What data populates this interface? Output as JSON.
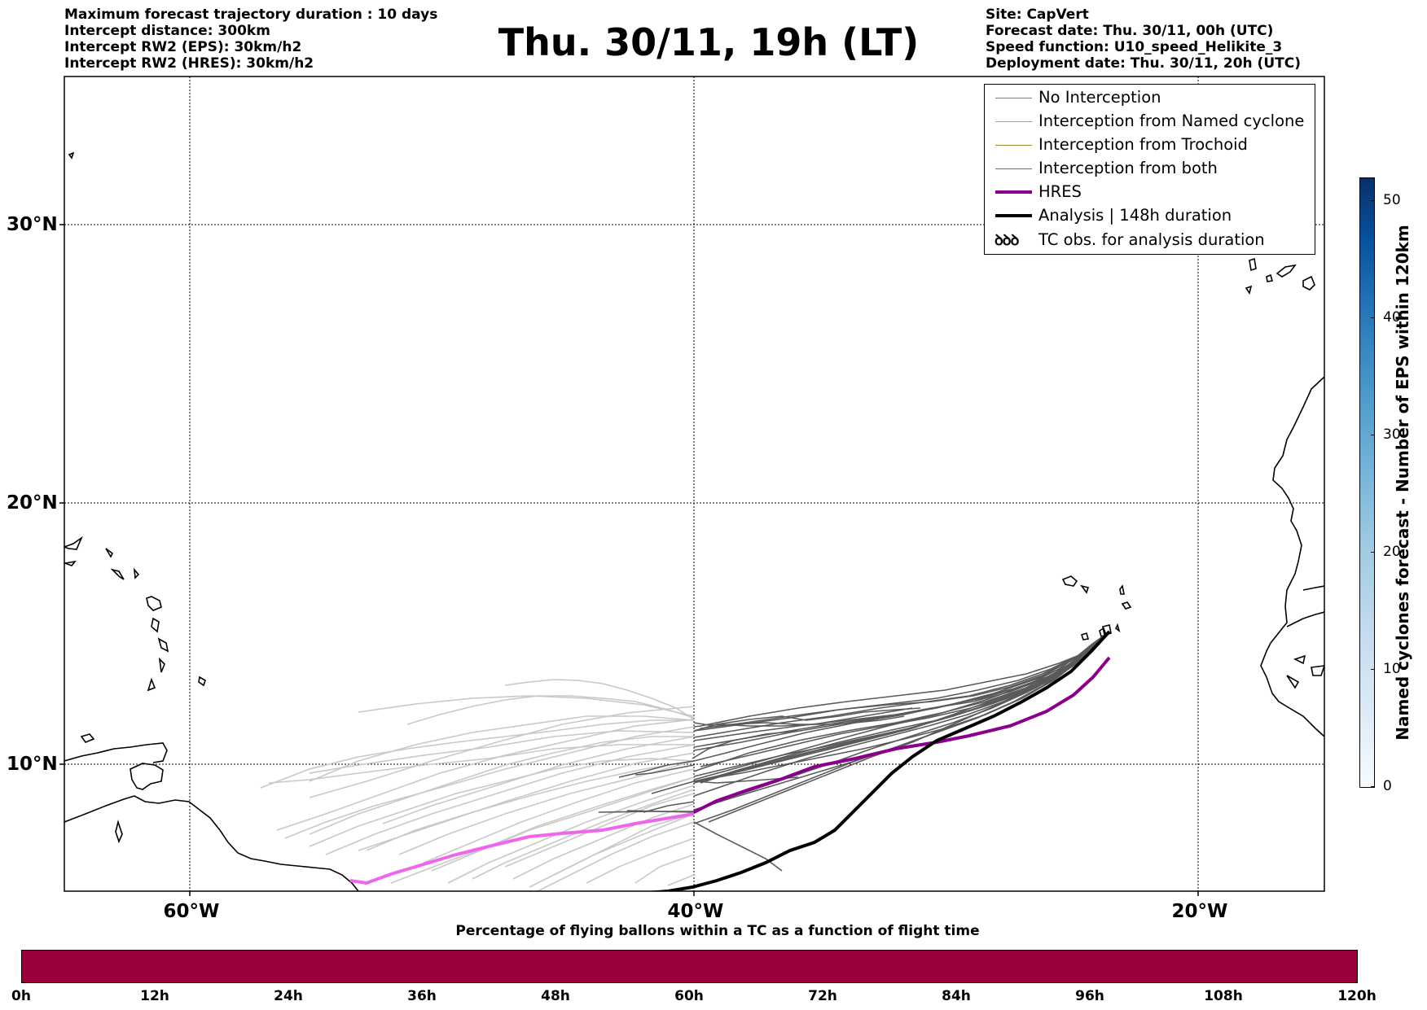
{
  "header": {
    "left_lines": [
      "Maximum forecast trajectory duration : 10 days",
      "Intercept distance: 300km",
      "Intercept RW2 (EPS):  30km/h2",
      "Intercept RW2 (HRES): 30km/h2"
    ],
    "title": "Thu. 30/11, 19h (LT)",
    "right_lines": [
      "Site: CapVert",
      "Forecast date: Thu. 30/11, 00h (UTC)",
      "Speed function: U10_speed_Helikite_3",
      "Deployment date: Thu. 30/11, 20h (UTC)"
    ]
  },
  "map": {
    "lat_labels": [
      "30°N",
      "20°N",
      "10°N"
    ],
    "lon_labels": [
      "60°W",
      "40°W",
      "20°W"
    ],
    "colors": {
      "no_interception": "#808080",
      "named_cyclone": "#ff7f50",
      "trochoid": "#9a8a3a",
      "both": "#2ca02c",
      "hres": "#8b008b",
      "hres_early": "#ee66ee",
      "analysis": "#000000"
    }
  },
  "legend": {
    "items": [
      {
        "label": "No Interception",
        "icon": "line-gray"
      },
      {
        "label": "Interception from Named cyclone",
        "icon": "line-orange"
      },
      {
        "label": "Interception from Trochoid",
        "icon": "line-olive"
      },
      {
        "label": "Interception from both",
        "icon": "line-green"
      },
      {
        "label": "HRES",
        "icon": "line-purple-thick"
      },
      {
        "label": "Analysis | 148h duration",
        "icon": "line-black-thick"
      },
      {
        "label": "TC obs. for analysis duration",
        "icon": "cyclone-symbols"
      }
    ],
    "tc_symbol": "ꝺꝺꝺ"
  },
  "colorbar": {
    "label": "Named cyclones forecast - Number of EPS within 120km",
    "ticks": [
      "0",
      "10",
      "20",
      "30",
      "40",
      "50"
    ],
    "range": [
      0,
      52
    ]
  },
  "flight_bar": {
    "title": "Percentage of flying ballons within a TC as a function of flight time",
    "ticks": [
      "0h",
      "12h",
      "24h",
      "36h",
      "48h",
      "60h",
      "72h",
      "84h",
      "96h",
      "108h",
      "120h"
    ],
    "color": "#9b003d",
    "percent_in_tc": 0
  }
}
